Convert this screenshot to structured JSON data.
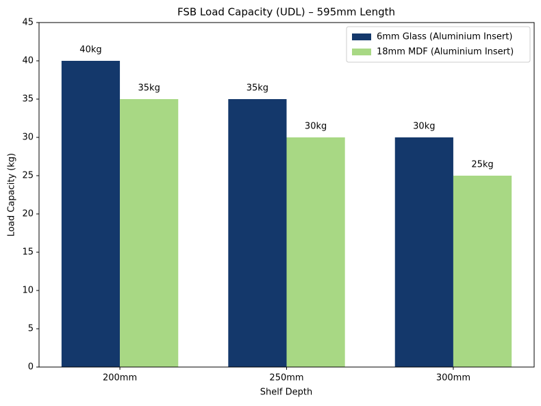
{
  "chart_data": {
    "type": "bar",
    "title": "FSB Load Capacity (UDL) – 595mm Length",
    "x_label": "Shelf Depth",
    "y_label": "Load Capacity (kg)",
    "categories": [
      "200mm",
      "250mm",
      "300mm"
    ],
    "series": [
      {
        "name": "6mm Glass (Aluminium Insert)",
        "color": "#14386b",
        "values": [
          40,
          35,
          30
        ],
        "value_labels": [
          "40kg",
          "35kg",
          "30kg"
        ]
      },
      {
        "name": "18mm MDF (Aluminium Insert)",
        "color": "#a8d884",
        "values": [
          35,
          30,
          25
        ],
        "value_labels": [
          "35kg",
          "30kg",
          "25kg"
        ]
      }
    ],
    "ylim": [
      0,
      45
    ],
    "yticks": [
      0,
      5,
      10,
      15,
      20,
      25,
      30,
      35,
      40,
      45
    ],
    "legend": "upper right"
  }
}
